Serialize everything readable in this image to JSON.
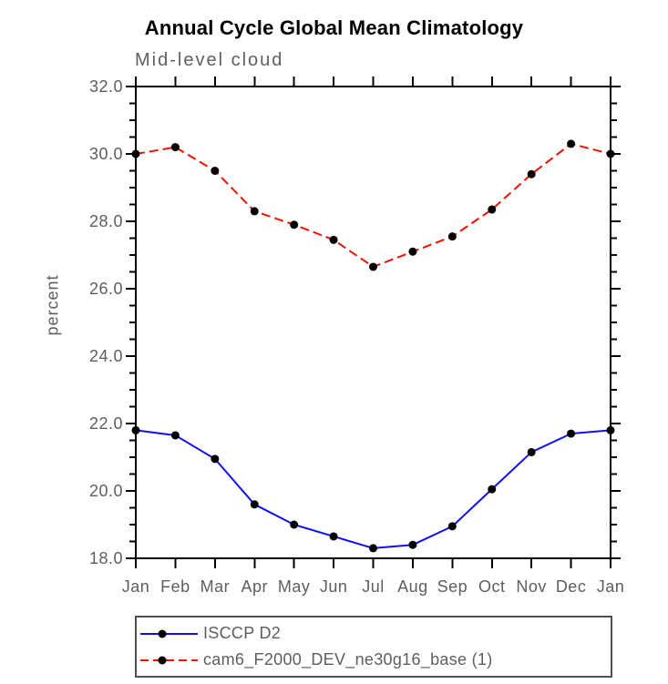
{
  "page": {
    "background": "#ffffff"
  },
  "chart_data": {
    "type": "line",
    "title": "Annual Cycle Global Mean Climatology",
    "subtitle": "Mid-level cloud",
    "ylabel": "percent",
    "xlabel": "",
    "categories": [
      "Jan",
      "Feb",
      "Mar",
      "Apr",
      "May",
      "Jun",
      "Jul",
      "Aug",
      "Sep",
      "Oct",
      "Nov",
      "Dec",
      "Jan"
    ],
    "ylim": [
      18.0,
      32.0
    ],
    "ytick_step": 2.0,
    "yminor_step": 0.5,
    "ytick_labels": [
      "18.0",
      "20.0",
      "22.0",
      "24.0",
      "26.0",
      "28.0",
      "30.0",
      "32.0"
    ],
    "grid": false,
    "legend_position": "bottom-left",
    "axis_color": "#000000",
    "label_color": "#5e5e5e",
    "marker_color": "#000000",
    "series": [
      {
        "name": "ISCCP D2",
        "color": "#1111ee",
        "line_style": "solid",
        "marker": "filled-circle",
        "values": [
          21.8,
          21.65,
          20.95,
          19.6,
          19.0,
          18.65,
          18.3,
          18.4,
          18.95,
          20.05,
          21.15,
          21.7,
          21.8
        ]
      },
      {
        "name": "cam6_F2000_DEV_ne30g16_base (1)",
        "color": "#ee1100",
        "line_style": "dashed",
        "marker": "filled-circle",
        "values": [
          30.0,
          30.2,
          29.5,
          28.3,
          27.9,
          27.45,
          26.65,
          27.1,
          27.55,
          28.35,
          29.4,
          30.3,
          30.0
        ]
      }
    ]
  }
}
